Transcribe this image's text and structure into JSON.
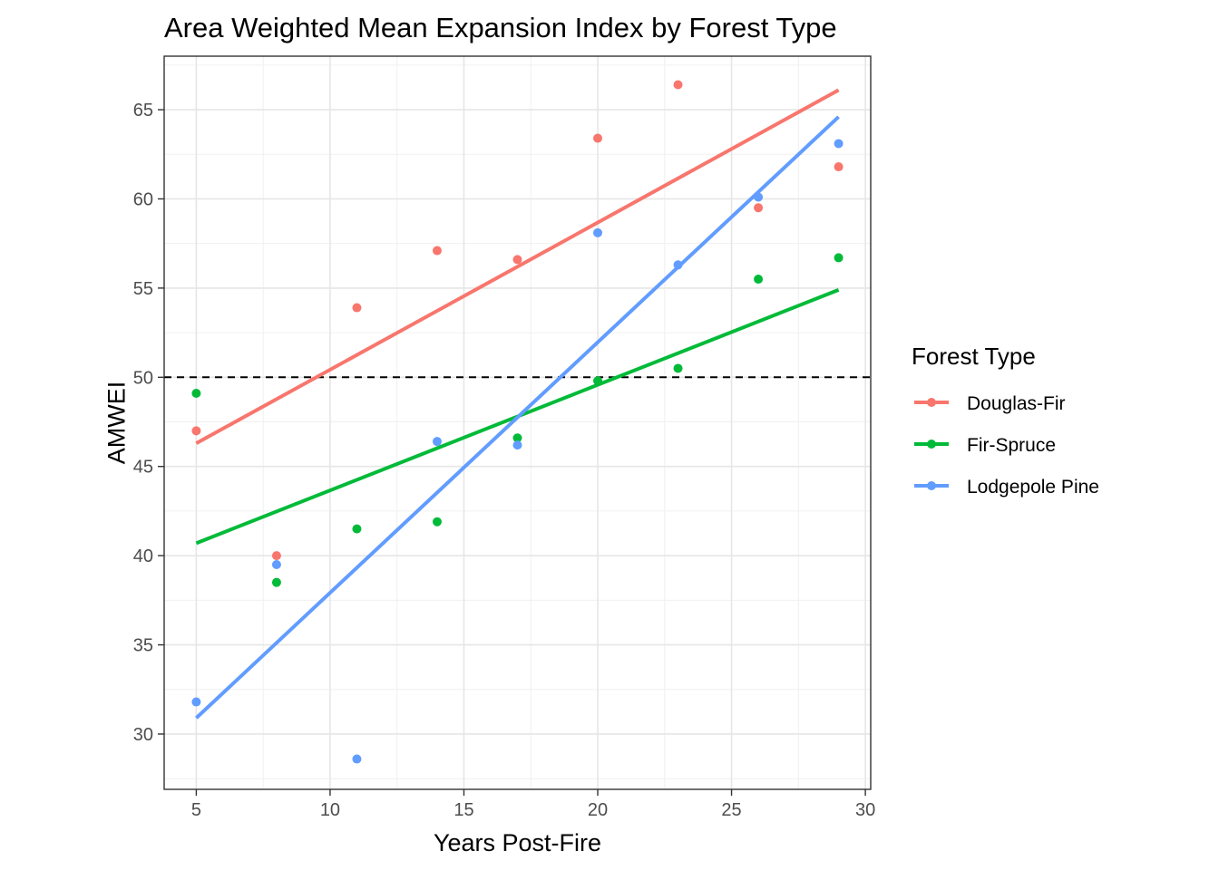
{
  "chart_data": {
    "type": "scatter",
    "title": "Area Weighted Mean Expansion Index by Forest Type",
    "xlabel": "Years Post-Fire",
    "ylabel": "AMWEI",
    "xlim": [
      3.8,
      30.2
    ],
    "ylim": [
      26.9,
      68.0
    ],
    "x_ticks": [
      5,
      10,
      15,
      20,
      25,
      30
    ],
    "y_ticks": [
      30,
      35,
      40,
      45,
      50,
      55,
      60,
      65
    ],
    "grid": true,
    "reference_line": {
      "y": 50,
      "style": "dashed"
    },
    "legend": {
      "title": "Forest Type",
      "position": "right"
    },
    "series": [
      {
        "name": "Douglas-Fir",
        "color": "#F8766D",
        "points": [
          [
            5,
            47.0
          ],
          [
            8,
            40.0
          ],
          [
            11,
            53.9
          ],
          [
            14,
            57.1
          ],
          [
            17,
            56.6
          ],
          [
            20,
            63.4
          ],
          [
            23,
            66.4
          ],
          [
            26,
            59.5
          ],
          [
            29,
            61.8
          ]
        ],
        "trend": [
          [
            5,
            46.3
          ],
          [
            29,
            66.1
          ]
        ]
      },
      {
        "name": "Fir-Spruce",
        "color": "#00BA38",
        "points": [
          [
            5,
            49.1
          ],
          [
            8,
            38.5
          ],
          [
            11,
            41.5
          ],
          [
            14,
            41.9
          ],
          [
            17,
            46.6
          ],
          [
            20,
            49.8
          ],
          [
            23,
            50.5
          ],
          [
            26,
            55.5
          ],
          [
            29,
            56.7
          ]
        ],
        "trend": [
          [
            5,
            40.7
          ],
          [
            29,
            54.9
          ]
        ]
      },
      {
        "name": "Lodgepole Pine",
        "color": "#619CFF",
        "points": [
          [
            5,
            31.8
          ],
          [
            8,
            39.5
          ],
          [
            11,
            28.6
          ],
          [
            14,
            46.4
          ],
          [
            17,
            46.2
          ],
          [
            20,
            58.1
          ],
          [
            23,
            56.3
          ],
          [
            26,
            60.1
          ],
          [
            29,
            63.1
          ]
        ],
        "trend": [
          [
            5,
            30.9
          ],
          [
            29,
            64.6
          ]
        ]
      }
    ]
  }
}
